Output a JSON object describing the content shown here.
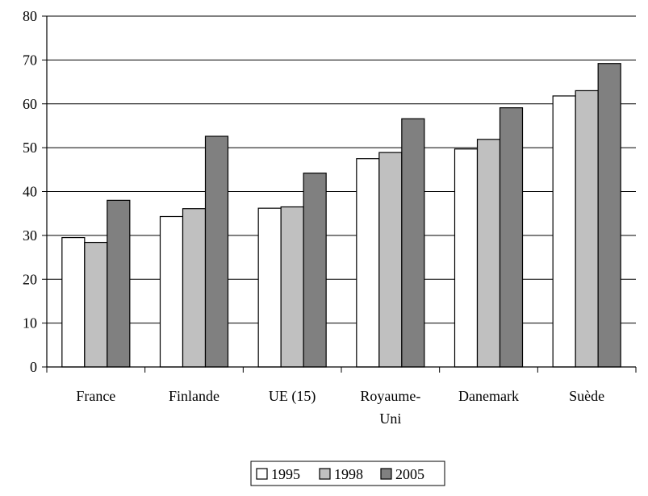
{
  "chart_data": {
    "type": "bar",
    "title": "",
    "xlabel": "",
    "ylabel": "",
    "categories": [
      [
        "France"
      ],
      [
        "Finlande"
      ],
      [
        "UE (15)"
      ],
      [
        "Royaume-",
        "Uni"
      ],
      [
        "Danemark"
      ],
      [
        "Suède"
      ]
    ],
    "ylim": [
      0,
      80
    ],
    "yticks": [
      0,
      10,
      20,
      30,
      40,
      50,
      60,
      70,
      80
    ],
    "grid": true,
    "legend_position": "bottom",
    "series": [
      {
        "name": "1995",
        "color": "#ffffff",
        "values": [
          29.5,
          34.3,
          36.2,
          47.5,
          49.7,
          61.8
        ]
      },
      {
        "name": "1998",
        "color": "#c0c0c0",
        "values": [
          28.4,
          36.1,
          36.5,
          48.9,
          51.9,
          63.0
        ]
      },
      {
        "name": "2005",
        "color": "#808080",
        "values": [
          38.0,
          52.6,
          44.2,
          56.6,
          59.1,
          69.2
        ]
      }
    ]
  }
}
